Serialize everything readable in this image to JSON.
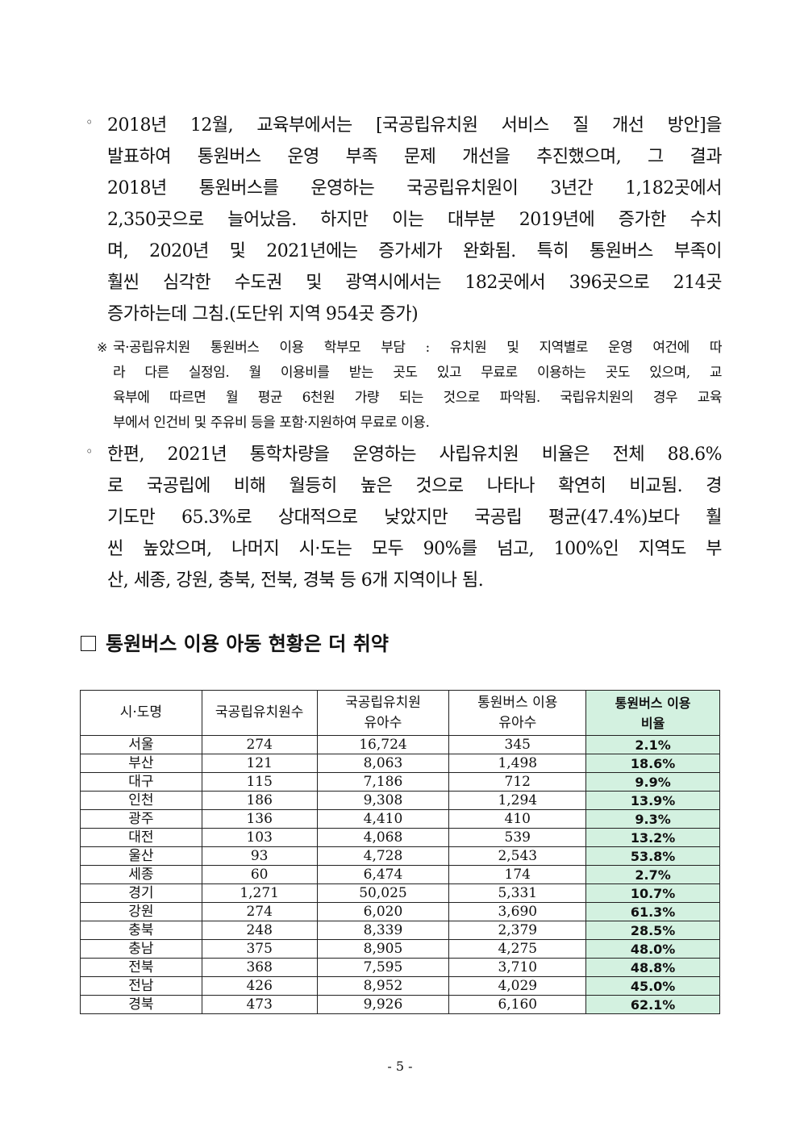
{
  "bullet1": {
    "symbol": "◦",
    "lines": [
      "2018년 12월, 교육부에서는 [국공립유치원 서비스 질 개선 방안]을",
      "발표하여 통원버스 운영 부족 문제 개선을 추진했으며, 그 결과",
      "2018년 통원버스를 운영하는 국공립유치원이 3년간 1,182곳에서",
      "2,350곳으로 늘어났음. 하지만 이는 대부분 2019년에 증가한 수치",
      "며, 2020년 및 2021년에는 증가세가 완화됨. 특히 통원버스 부족이",
      "훨씬 심각한 수도권 및 광역시에서는 182곳에서 396곳으로 214곳",
      "증가하는데 그침.(도단위 지역 954곳 증가)"
    ]
  },
  "note": {
    "symbol": "※",
    "lines": [
      "국·공립유치원 통원버스 이용 학부모 부담 : 유치원 및 지역별로 운영 여건에 따",
      "라 다른 실정임. 월 이용비를 받는 곳도 있고 무료로 이용하는 곳도 있으며, 교",
      "육부에 따르면 월 평균 6천원 가량 되는 것으로 파악됨. 국립유치원의 경우 교육",
      "부에서 인건비 및 주유비 등을 포함·지원하여 무료로 이용."
    ]
  },
  "bullet2": {
    "symbol": "◦",
    "lines": [
      "한편, 2021년 통학차량을 운영하는 사립유치원 비율은 전체 88.6%",
      "로 국공립에 비해 월등히 높은 것으로 나타나 확연히 비교됨. 경",
      "기도만 65.3%로 상대적으로 낮았지만 국공립 평균(47.4%)보다 훨",
      "씬 높았으며, 나머지 시·도는 모두 90%를 넘고, 100%인 지역도 부",
      "산, 세종, 강원, 충북, 전북, 경북 등 6개 지역이나 됨."
    ]
  },
  "heading": "통원버스 이용 아동 현황은 더 취약",
  "table": {
    "highlight_color": "#d3f1e0",
    "headers": [
      [
        "시·도명"
      ],
      [
        "국공립유치원수"
      ],
      [
        "국공립유치원",
        "유아수"
      ],
      [
        "통원버스 이용",
        "유아수"
      ],
      [
        "통원버스 이용",
        "비율"
      ]
    ],
    "rows": [
      [
        "서울",
        "274",
        "16,724",
        "345",
        "2.1%"
      ],
      [
        "부산",
        "121",
        "8,063",
        "1,498",
        "18.6%"
      ],
      [
        "대구",
        "115",
        "7,186",
        "712",
        "9.9%"
      ],
      [
        "인천",
        "186",
        "9,308",
        "1,294",
        "13.9%"
      ],
      [
        "광주",
        "136",
        "4,410",
        "410",
        "9.3%"
      ],
      [
        "대전",
        "103",
        "4,068",
        "539",
        "13.2%"
      ],
      [
        "울산",
        "93",
        "4,728",
        "2,543",
        "53.8%"
      ],
      [
        "세종",
        "60",
        "6,474",
        "174",
        "2.7%"
      ],
      [
        "경기",
        "1,271",
        "50,025",
        "5,331",
        "10.7%"
      ],
      [
        "강원",
        "274",
        "6,020",
        "3,690",
        "61.3%"
      ],
      [
        "충북",
        "248",
        "8,339",
        "2,379",
        "28.5%"
      ],
      [
        "충남",
        "375",
        "8,905",
        "4,275",
        "48.0%"
      ],
      [
        "전북",
        "368",
        "7,595",
        "3,710",
        "48.8%"
      ],
      [
        "전남",
        "426",
        "8,952",
        "4,029",
        "45.0%"
      ],
      [
        "경북",
        "473",
        "9,926",
        "6,160",
        "62.1%"
      ]
    ]
  },
  "page_number": "- 5 -"
}
